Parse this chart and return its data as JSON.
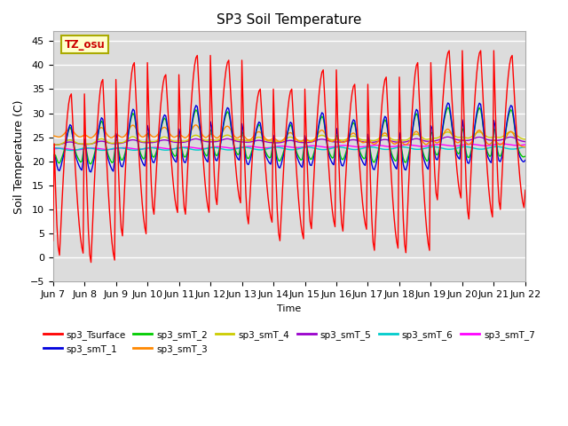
{
  "title": "SP3 Soil Temperature",
  "ylabel": "Soil Temperature (C)",
  "xlabel": "Time",
  "ylim": [
    -5,
    47
  ],
  "xlim": [
    0,
    360
  ],
  "bg_color": "#dcdcdc",
  "fig_color": "#ffffff",
  "grid_color": "#ffffff",
  "tz_label": "TZ_osu",
  "series_colors": {
    "sp3_Tsurface": "#ff0000",
    "sp3_smT_1": "#0000dd",
    "sp3_smT_2": "#00cc00",
    "sp3_smT_3": "#ff8800",
    "sp3_smT_4": "#cccc00",
    "sp3_smT_5": "#9900cc",
    "sp3_smT_6": "#00cccc",
    "sp3_smT_7": "#ff00ff"
  },
  "x_tick_labels": [
    "Jun 7",
    "Jun 8",
    "Jun 9",
    "Jun 10",
    "Jun 11",
    "Jun 12",
    "Jun 13",
    "Jun 14",
    "Jun 15",
    "Jun 16",
    "Jun 17",
    "Jun 18",
    "Jun 19",
    "Jun 20",
    "Jun 21",
    "Jun 22"
  ],
  "x_tick_positions": [
    0,
    24,
    48,
    72,
    96,
    120,
    144,
    168,
    192,
    216,
    240,
    264,
    288,
    312,
    336,
    360
  ],
  "y_ticks": [
    -5,
    0,
    5,
    10,
    15,
    20,
    25,
    30,
    35,
    40,
    45
  ],
  "line_width": 1.0,
  "surface_peaks": [
    34,
    37,
    40.5,
    38,
    42,
    41,
    35,
    35,
    39,
    36,
    37.5,
    40.5,
    43,
    43,
    42,
    41
  ],
  "surface_troughs": [
    0.5,
    -1.0,
    4.5,
    9.0,
    9.0,
    11.0,
    7.0,
    3.5,
    6.0,
    5.5,
    1.5,
    1.0,
    12.0,
    8.0,
    10.0
  ],
  "surface_start": 3.5
}
